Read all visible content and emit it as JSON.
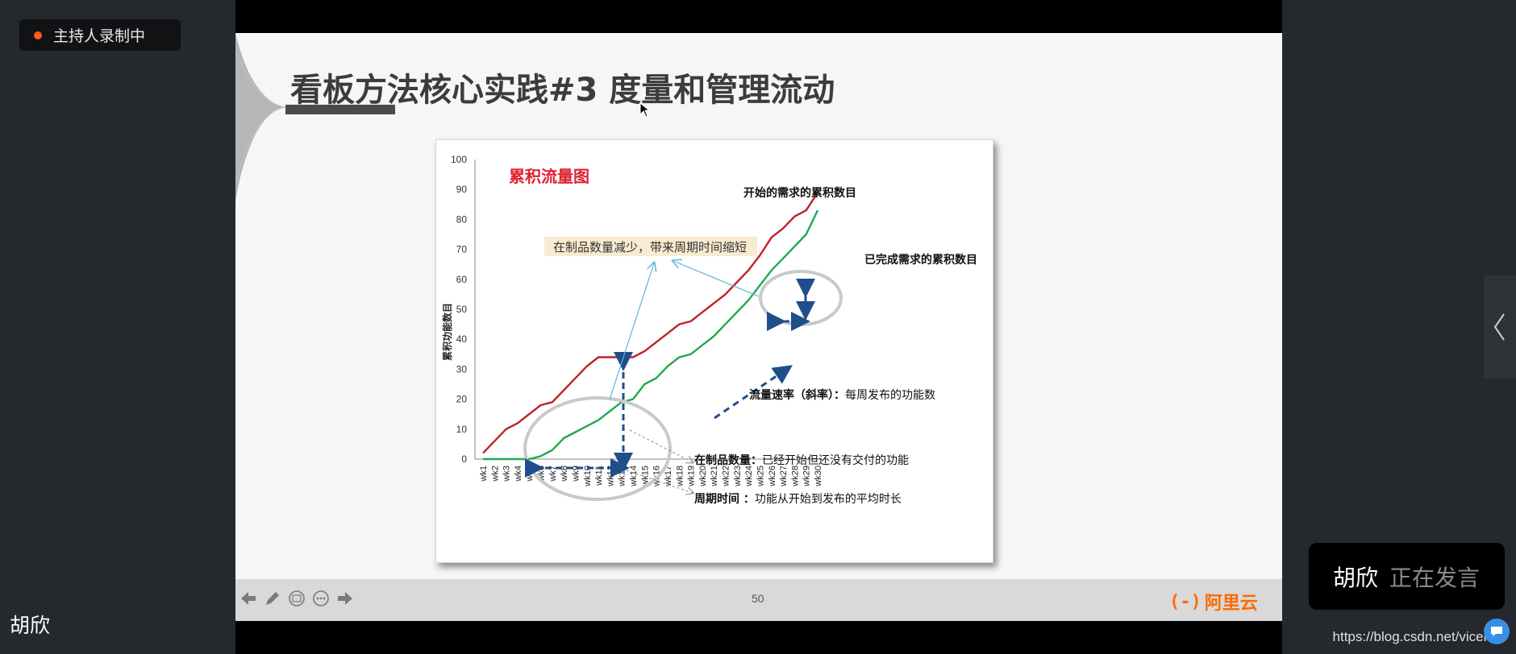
{
  "recording": {
    "label": "主持人录制中",
    "dot_color": "#ff5a1f"
  },
  "presenter": {
    "name": "胡欣"
  },
  "speaking_card": {
    "name": "胡欣",
    "status": "正在发言"
  },
  "watermark": "https://blog.csdn.net/vicenan",
  "slide": {
    "title": "看板方法核心实践#3 度量和管理流动",
    "page_number": "50",
    "brand": {
      "mark": "(-)",
      "text": "阿里云",
      "color": "#ff6a00"
    }
  },
  "chart_data": {
    "type": "line",
    "title": "累积流量图",
    "ylabel": "累积功能数目",
    "xlabel": "",
    "ylim": [
      0,
      100
    ],
    "yticks": [
      0,
      10,
      20,
      30,
      40,
      50,
      60,
      70,
      80,
      90,
      100
    ],
    "categories": [
      "wk1",
      "wk2",
      "wk3",
      "wk4",
      "wk5",
      "wk6",
      "wk7",
      "wk8",
      "wk9",
      "wk10",
      "wk11",
      "wk12",
      "wk13",
      "wk14",
      "wk15",
      "wk16",
      "wk17",
      "wk18",
      "wk19",
      "wk20",
      "wk21",
      "wk22",
      "wk23",
      "wk24",
      "wk25",
      "wk26",
      "wk27",
      "wk28",
      "wk29",
      "wk30"
    ],
    "series": [
      {
        "name": "开始的需求的累积数目",
        "color": "#c0202a",
        "values": [
          2,
          6,
          10,
          12,
          15,
          18,
          19,
          23,
          27,
          31,
          34,
          34,
          34,
          34,
          36,
          39,
          42,
          45,
          46,
          49,
          52,
          55,
          59,
          63,
          68,
          74,
          77,
          81,
          83,
          89
        ]
      },
      {
        "name": "已完成需求的累积数目",
        "color": "#1faa50",
        "values": [
          0,
          0,
          0,
          0,
          0,
          1,
          3,
          7,
          9,
          11,
          13,
          16,
          19,
          20,
          25,
          27,
          31,
          34,
          35,
          38,
          41,
          45,
          49,
          53,
          58,
          63,
          67,
          71,
          75,
          83
        ]
      }
    ],
    "annotations": {
      "callout_top": "在制品数量减少，带来周期时间缩短",
      "throughput_bold": "流量速率（斜率）：",
      "throughput_text": "每周发布的功能数",
      "wip_bold": "在制品数量：",
      "wip_text": "已经开始但还没有交付的功能",
      "cycle_bold": "周期时间 ：",
      "cycle_text": "功能从开始到发布的平均时长"
    },
    "grid": false,
    "legend": "inline"
  }
}
